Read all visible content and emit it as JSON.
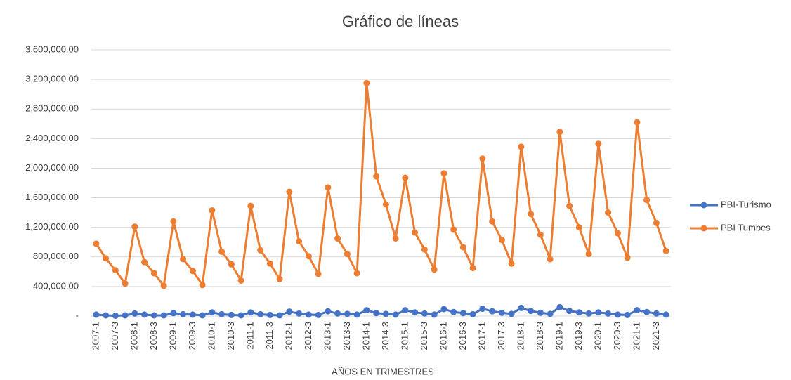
{
  "chart_data": {
    "type": "line",
    "title": "Gráfico de líneas",
    "x_label": "AÑOS EN TRIMESTRES",
    "categories": [
      "2007-1",
      null,
      "2007-3",
      null,
      "2008-1",
      null,
      "2008-3",
      null,
      "2009-1",
      null,
      "2009-3",
      null,
      "2010-1",
      null,
      "2010-3",
      null,
      "2011-1",
      null,
      "2011-3",
      null,
      "2012-1",
      null,
      "2012-3",
      null,
      "2013-1",
      null,
      "2013-3",
      null,
      "2014-1",
      null,
      "2014-3",
      null,
      "2015-1",
      null,
      "2015-3",
      null,
      "2016-1",
      null,
      "2016-3",
      null,
      "2017-1",
      null,
      "2017-3",
      null,
      "2018-1",
      null,
      "2018-3",
      null,
      "2019-1",
      null,
      "2019-3",
      null,
      "2020-1",
      null,
      "2020-3",
      null,
      "2021-1",
      null,
      "2021-3",
      null
    ],
    "series": [
      {
        "name": "PBI-Turismo",
        "color": "#4472c4",
        "values": [
          20000,
          10000,
          5000,
          10000,
          35000,
          20000,
          10000,
          10000,
          40000,
          25000,
          20000,
          10000,
          50000,
          25000,
          15000,
          10000,
          50000,
          25000,
          15000,
          10000,
          60000,
          35000,
          20000,
          15000,
          65000,
          35000,
          30000,
          20000,
          80000,
          40000,
          30000,
          20000,
          80000,
          50000,
          35000,
          20000,
          95000,
          55000,
          40000,
          25000,
          100000,
          65000,
          45000,
          30000,
          110000,
          70000,
          45000,
          30000,
          120000,
          70000,
          50000,
          35000,
          50000,
          35000,
          20000,
          15000,
          80000,
          55000,
          35000,
          20000
        ]
      },
      {
        "name": "PBI Tumbes",
        "color": "#ed7d31",
        "values": [
          980000,
          780000,
          620000,
          440000,
          1210000,
          730000,
          580000,
          410000,
          1280000,
          770000,
          610000,
          420000,
          1430000,
          870000,
          700000,
          480000,
          1490000,
          890000,
          710000,
          500000,
          1680000,
          1010000,
          810000,
          570000,
          1740000,
          1050000,
          840000,
          580000,
          3150000,
          1890000,
          1510000,
          1050000,
          1870000,
          1130000,
          900000,
          630000,
          1930000,
          1170000,
          930000,
          650000,
          2130000,
          1280000,
          1030000,
          710000,
          2290000,
          1380000,
          1100000,
          770000,
          2490000,
          1490000,
          1200000,
          840000,
          2330000,
          1400000,
          1120000,
          790000,
          2620000,
          1570000,
          1260000,
          880000
        ]
      }
    ],
    "ylim": [
      0,
      3600000
    ],
    "yticks": [
      {
        "value": 0,
        "label": "-"
      },
      {
        "value": 400000,
        "label": "400,000.00"
      },
      {
        "value": 800000,
        "label": "800,000.00"
      },
      {
        "value": 1200000,
        "label": "1,200,000.00"
      },
      {
        "value": 1600000,
        "label": "1,600,000.00"
      },
      {
        "value": 2000000,
        "label": "2,000,000.00"
      },
      {
        "value": 2400000,
        "label": "2,400,000.00"
      },
      {
        "value": 2800000,
        "label": "2,800,000.00"
      },
      {
        "value": 3200000,
        "label": "3,200,000.00"
      },
      {
        "value": 3600000,
        "label": "3,600,000.00"
      }
    ],
    "grid": true,
    "legend": "right"
  }
}
